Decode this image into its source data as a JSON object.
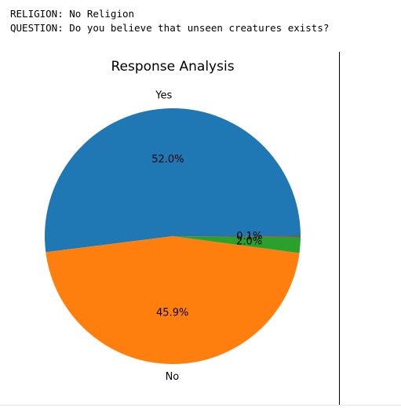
{
  "output": {
    "religion_line": "RELIGION: No Religion",
    "question_line": "QUESTION: Do you believe that unseen creatures exists?"
  },
  "chart_data": {
    "type": "pie",
    "title": "Response Analysis",
    "slices": [
      {
        "label": "Yes",
        "value": 52.0,
        "pct_label": "52.0%",
        "color": "#1f77b4"
      },
      {
        "label": "No",
        "value": 45.9,
        "pct_label": "45.9%",
        "color": "#ff7f0e"
      },
      {
        "label": "",
        "value": 2.0,
        "pct_label": "2.0%",
        "color": "#2ca02c"
      },
      {
        "label": "",
        "value": 0.1,
        "pct_label": "0.1%",
        "color": "#d62728"
      }
    ],
    "start_angle_deg": 0,
    "direction": "counterclockwise"
  }
}
